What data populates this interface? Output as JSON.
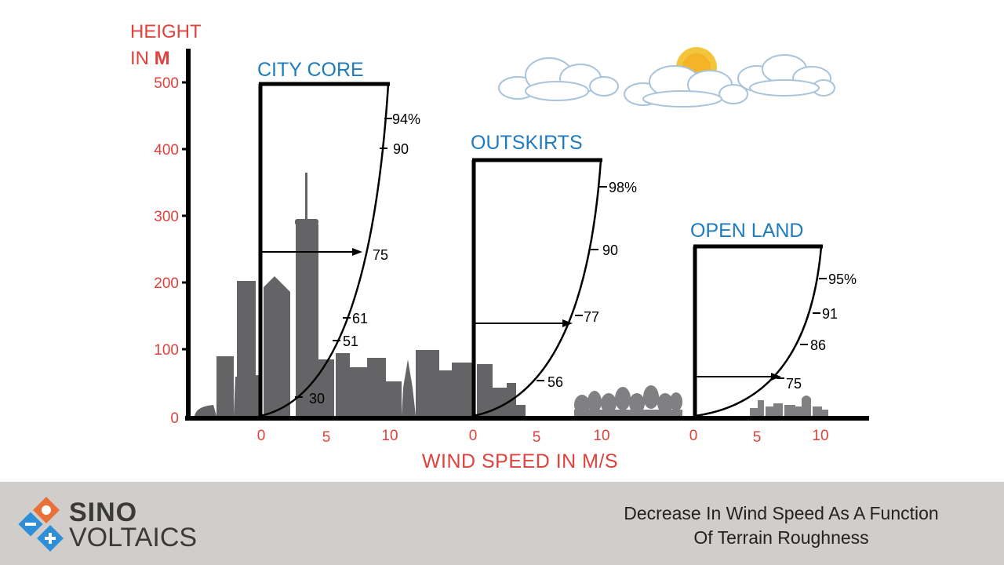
{
  "colors": {
    "axis_label": "#e0413c",
    "zone_title": "#1f7bbf",
    "silhouette": "#646466",
    "tree": "#808082",
    "footer_bg": "#d0cdcb",
    "sun": "#f2c53b"
  },
  "y_axis": {
    "label_line1": "HEIGHT",
    "label_line2_prefix": "IN ",
    "label_line2_unit": "M",
    "ticks": [
      "500",
      "400",
      "300",
      "200",
      "100",
      "0"
    ]
  },
  "x_axis": {
    "label": "WIND SPEED IN M/S",
    "tick_labels": {
      "city_core": [
        "0",
        "5",
        "10"
      ],
      "outskirts": [
        "0",
        "5",
        "10"
      ],
      "open_land": [
        "0",
        "5",
        "10"
      ]
    }
  },
  "zones": [
    {
      "title": "CITY CORE",
      "gradient_height_m": 500,
      "profile_labels": [
        "94%",
        "90",
        "75",
        "61",
        "51",
        "30"
      ],
      "arrow_label": "75"
    },
    {
      "title": "OUTSKIRTS",
      "gradient_height_m": 385,
      "profile_labels": [
        "98%",
        "90",
        "77",
        "56"
      ],
      "arrow_label": "77"
    },
    {
      "title": "OPEN LAND",
      "gradient_height_m": 255,
      "profile_labels": [
        "95%",
        "91",
        "86",
        "75"
      ],
      "arrow_label": "75"
    }
  ],
  "footer": {
    "logo_line1": "SINO",
    "logo_line2": "VOLTAICS",
    "caption_line1": "Decrease In Wind Speed As A Function",
    "caption_line2": "Of Terrain Roughness"
  }
}
